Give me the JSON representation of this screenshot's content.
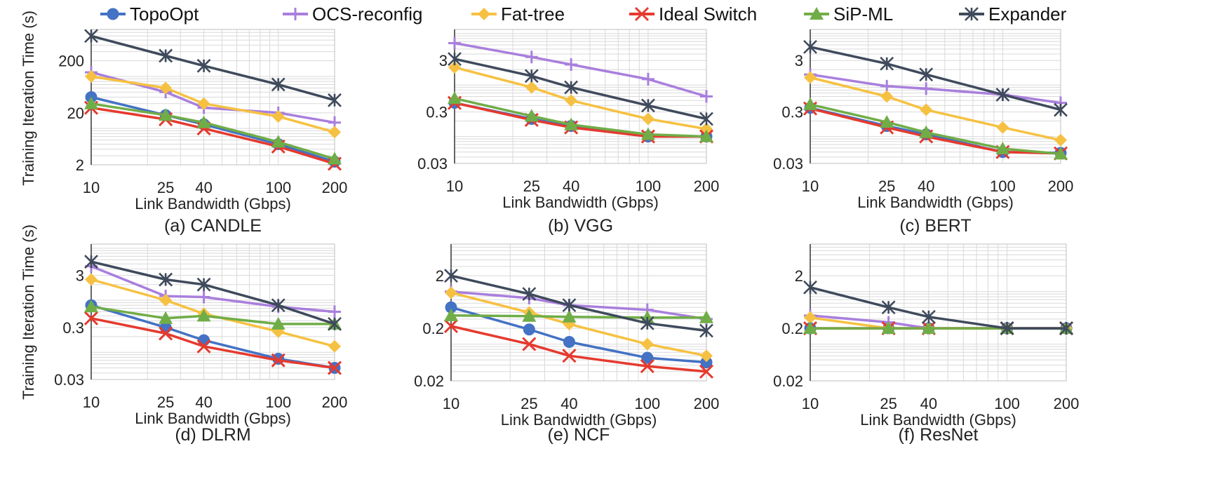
{
  "legend": [
    {
      "name": "TopoOpt",
      "color": "#4472C4",
      "marker": "circle"
    },
    {
      "name": "OCS-reconfig",
      "color": "#A97FDD",
      "marker": "plus"
    },
    {
      "name": "Fat-tree",
      "color": "#F6C142",
      "marker": "diamond"
    },
    {
      "name": "Ideal Switch",
      "color": "#E53A2E",
      "marker": "x"
    },
    {
      "name": "SiP-ML",
      "color": "#70AD47",
      "marker": "triangle"
    },
    {
      "name": "Expander",
      "color": "#3F4A5C",
      "marker": "star"
    }
  ],
  "ylabel": "Training Iteration Time (s)",
  "chart_data": [
    {
      "type": "line",
      "caption": "(a) CANDLE",
      "xlabel": "Link Bandwidth (Gbps)",
      "x": [
        10,
        25,
        40,
        100,
        200
      ],
      "xscale": "log",
      "yscale": "log",
      "ylim": [
        2,
        800
      ],
      "yticks": [
        2,
        20,
        200
      ],
      "ytick_labels": [
        "2",
        "20",
        "200"
      ],
      "grid": true,
      "series": [
        {
          "name": "TopoOpt",
          "values": [
            40,
            18,
            12,
            5,
            2.3
          ]
        },
        {
          "name": "OCS-reconfig",
          "values": [
            120,
            50,
            25,
            20,
            13
          ]
        },
        {
          "name": "Fat-tree",
          "values": [
            100,
            60,
            30,
            17,
            8.5
          ]
        },
        {
          "name": "Ideal Switch",
          "values": [
            25,
            15,
            10,
            4.5,
            2.1
          ]
        },
        {
          "name": "SiP-ML",
          "values": [
            30,
            18,
            13,
            5.5,
            2.6
          ]
        },
        {
          "name": "Expander",
          "values": [
            600,
            250,
            160,
            70,
            35
          ]
        }
      ]
    },
    {
      "type": "line",
      "caption": "(b) VGG",
      "xlabel": "Link Bandwidth (Gbps)",
      "x": [
        10,
        25,
        40,
        100,
        200
      ],
      "xscale": "log",
      "yscale": "log",
      "ylim": [
        0.03,
        12
      ],
      "yticks": [
        0.03,
        0.3,
        3
      ],
      "ytick_labels": [
        "0.03",
        "0.3",
        "3"
      ],
      "grid": true,
      "series": [
        {
          "name": "TopoOpt",
          "values": [
            0.45,
            0.22,
            0.16,
            0.1,
            0.1
          ]
        },
        {
          "name": "OCS-reconfig",
          "values": [
            6.5,
            3.5,
            2.5,
            1.3,
            0.6
          ]
        },
        {
          "name": "Fat-tree",
          "values": [
            2.2,
            0.9,
            0.5,
            0.22,
            0.14
          ]
        },
        {
          "name": "Ideal Switch",
          "values": [
            0.45,
            0.21,
            0.15,
            0.1,
            0.1
          ]
        },
        {
          "name": "SiP-ML",
          "values": [
            0.55,
            0.25,
            0.17,
            0.11,
            0.1
          ]
        },
        {
          "name": "Expander",
          "values": [
            3.2,
            1.5,
            0.9,
            0.4,
            0.22
          ]
        }
      ]
    },
    {
      "type": "line",
      "caption": "(c) BERT",
      "xlabel": "Link Bandwidth (Gbps)",
      "x": [
        10,
        25,
        40,
        100,
        200
      ],
      "xscale": "log",
      "yscale": "log",
      "ylim": [
        0.03,
        12
      ],
      "yticks": [
        0.03,
        0.3,
        3
      ],
      "ytick_labels": [
        "0.03",
        "0.3",
        "3"
      ],
      "grid": true,
      "series": [
        {
          "name": "TopoOpt",
          "values": [
            0.36,
            0.16,
            0.11,
            0.05,
            0.048
          ]
        },
        {
          "name": "OCS-reconfig",
          "values": [
            1.6,
            0.95,
            0.85,
            0.65,
            0.45
          ]
        },
        {
          "name": "Fat-tree",
          "values": [
            1.4,
            0.6,
            0.33,
            0.15,
            0.085
          ]
        },
        {
          "name": "Ideal Switch",
          "values": [
            0.35,
            0.15,
            0.1,
            0.05,
            0.047
          ]
        },
        {
          "name": "SiP-ML",
          "values": [
            0.42,
            0.19,
            0.12,
            0.058,
            0.046
          ]
        },
        {
          "name": "Expander",
          "values": [
            5.5,
            2.6,
            1.6,
            0.65,
            0.33
          ]
        }
      ]
    },
    {
      "type": "line",
      "caption": "(d) DLRM",
      "xlabel": "Link Bandwidth (Gbps)",
      "x": [
        10,
        25,
        40,
        100,
        200
      ],
      "xscale": "log",
      "yscale": "log",
      "ylim": [
        0.03,
        12
      ],
      "yticks": [
        0.03,
        0.3,
        3
      ],
      "ytick_labels": [
        "0.03",
        "0.3",
        "3"
      ],
      "grid": true,
      "series": [
        {
          "name": "TopoOpt",
          "values": [
            0.8,
            0.3,
            0.17,
            0.075,
            0.05
          ]
        },
        {
          "name": "OCS-reconfig",
          "values": [
            4.5,
            1.2,
            1.15,
            0.75,
            0.6
          ]
        },
        {
          "name": "Fat-tree",
          "values": [
            2.5,
            1.0,
            0.55,
            0.25,
            0.13
          ]
        },
        {
          "name": "Ideal Switch",
          "values": [
            0.45,
            0.23,
            0.13,
            0.07,
            0.05
          ]
        },
        {
          "name": "SiP-ML",
          "values": [
            0.75,
            0.45,
            0.5,
            0.35,
            0.35
          ]
        },
        {
          "name": "Expander",
          "values": [
            5.5,
            2.5,
            2.0,
            0.8,
            0.35
          ]
        }
      ]
    },
    {
      "type": "line",
      "caption": "(e) NCF",
      "xlabel": "Link Bandwidth (Gbps)",
      "x": [
        10,
        25,
        40,
        100,
        200
      ],
      "xscale": "log",
      "yscale": "log",
      "ylim": [
        0.02,
        8
      ],
      "yticks": [
        0.02,
        0.2,
        2
      ],
      "ytick_labels": [
        "0.02",
        "0.2",
        "2"
      ],
      "grid": true,
      "series": [
        {
          "name": "TopoOpt",
          "values": [
            0.5,
            0.19,
            0.11,
            0.055,
            0.045
          ]
        },
        {
          "name": "OCS-reconfig",
          "values": [
            1.0,
            0.75,
            0.55,
            0.45,
            0.3
          ]
        },
        {
          "name": "Fat-tree",
          "values": [
            0.95,
            0.4,
            0.24,
            0.1,
            0.06
          ]
        },
        {
          "name": "Ideal Switch",
          "values": [
            0.22,
            0.1,
            0.06,
            0.038,
            0.03
          ]
        },
        {
          "name": "SiP-ML",
          "values": [
            0.35,
            0.34,
            0.33,
            0.32,
            0.32
          ]
        },
        {
          "name": "Expander",
          "values": [
            2.0,
            0.9,
            0.55,
            0.25,
            0.18
          ]
        }
      ]
    },
    {
      "type": "line",
      "caption": "(f) ResNet",
      "xlabel": "Link Bandwidth (Gbps)",
      "x": [
        10,
        25,
        40,
        100,
        200
      ],
      "xscale": "log",
      "yscale": "log",
      "ylim": [
        0.02,
        8
      ],
      "yticks": [
        0.02,
        0.2,
        2
      ],
      "ytick_labels": [
        "0.02",
        "0.2",
        "2"
      ],
      "grid": true,
      "series": [
        {
          "name": "TopoOpt",
          "values": [
            0.2,
            0.2,
            0.2,
            0.2,
            0.2
          ]
        },
        {
          "name": "OCS-reconfig",
          "values": [
            0.35,
            0.26,
            0.2,
            0.2,
            0.2
          ]
        },
        {
          "name": "Fat-tree",
          "values": [
            0.32,
            0.2,
            0.2,
            0.2,
            0.2
          ]
        },
        {
          "name": "Ideal Switch",
          "values": [
            0.2,
            0.2,
            0.2,
            0.2,
            0.2
          ]
        },
        {
          "name": "SiP-ML",
          "values": [
            0.2,
            0.2,
            0.2,
            0.2,
            0.2
          ]
        },
        {
          "name": "Expander",
          "values": [
            1.2,
            0.5,
            0.33,
            0.2,
            0.2
          ]
        }
      ]
    }
  ]
}
